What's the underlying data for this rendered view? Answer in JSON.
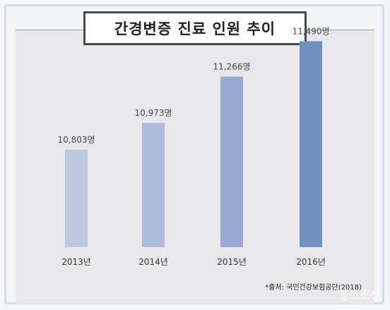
{
  "chart_data": {
    "type": "bar",
    "title": "간경변증 진료 인원 추이",
    "categories": [
      "2013년",
      "2014년",
      "2015년",
      "2016년"
    ],
    "values": [
      10803,
      10973,
      11266,
      11490
    ],
    "value_labels": [
      "10,803명",
      "10,973명",
      "11,266명",
      "11,490명"
    ],
    "bar_colors": [
      "#bcc7e0",
      "#aebbdb",
      "#97a9d3",
      "#7290c0"
    ],
    "axis_visible": false,
    "grid": false
  },
  "source": "*출처: 국민건강보험공단(2018)",
  "watermark": "헬스조선"
}
